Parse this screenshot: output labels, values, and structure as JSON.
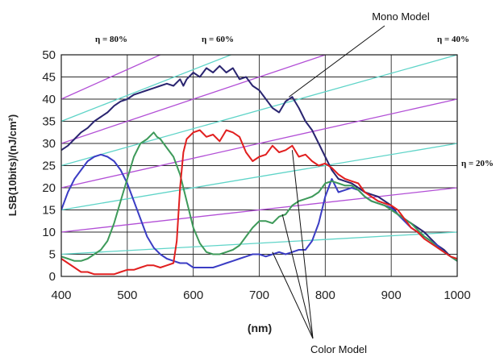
{
  "chart_data": {
    "type": "line",
    "xlabel": "(nm)",
    "ylabel": "LSB(10bits)/(nJ/cm²)",
    "xlim": [
      400,
      1000
    ],
    "ylim": [
      0,
      50
    ],
    "xticks": [
      400,
      500,
      600,
      700,
      800,
      900,
      1000
    ],
    "yticks": [
      0,
      5,
      10,
      15,
      20,
      25,
      30,
      35,
      40,
      45,
      50
    ],
    "grid": true,
    "series": [
      {
        "label": "Mono Model",
        "color": "#2a2570",
        "x": [
          400,
          410,
          420,
          430,
          440,
          450,
          460,
          470,
          480,
          490,
          500,
          510,
          520,
          530,
          540,
          550,
          560,
          570,
          580,
          585,
          590,
          600,
          610,
          620,
          630,
          640,
          650,
          660,
          670,
          680,
          690,
          700,
          710,
          720,
          730,
          740,
          750,
          760,
          770,
          780,
          790,
          800,
          810,
          820,
          830,
          840,
          850,
          860,
          870,
          880,
          890,
          900,
          910,
          920,
          930,
          940,
          950,
          960,
          970,
          980,
          990,
          1000
        ],
        "y": [
          28.5,
          29.5,
          31,
          32.5,
          33.5,
          35,
          36,
          37,
          38.5,
          39.5,
          40,
          41,
          41.5,
          42,
          42.5,
          43,
          43.5,
          43,
          44.5,
          43,
          44.5,
          46,
          45,
          47,
          46,
          47.5,
          46,
          47,
          44.5,
          45,
          43,
          42,
          40,
          38,
          37,
          39.5,
          40.5,
          38,
          35,
          33,
          30,
          27,
          24,
          22,
          21.5,
          21,
          20,
          19,
          18.5,
          18,
          17,
          16,
          14,
          13,
          12,
          11,
          10,
          8.5,
          7,
          6,
          4.5,
          3.5
        ]
      },
      {
        "label": "Color Model (blue)",
        "color": "#3b3dc4",
        "x": [
          400,
          410,
          420,
          430,
          440,
          450,
          460,
          470,
          480,
          490,
          500,
          510,
          520,
          530,
          540,
          550,
          560,
          570,
          580,
          590,
          600,
          610,
          620,
          630,
          640,
          650,
          660,
          670,
          680,
          690,
          700,
          710,
          720,
          730,
          740,
          750,
          760,
          770,
          780,
          790,
          800,
          810,
          820,
          830,
          840,
          850,
          860,
          870,
          880,
          890,
          900,
          910,
          920,
          930,
          940,
          950,
          960,
          970,
          980,
          990,
          1000
        ],
        "y": [
          15,
          19,
          22,
          24,
          26,
          27,
          27.5,
          27,
          26,
          24,
          21,
          17,
          13,
          9,
          6.5,
          5,
          4,
          3.5,
          3,
          3,
          2,
          2,
          2,
          2,
          2.5,
          3,
          3.5,
          4,
          4.5,
          5,
          5,
          4.5,
          5,
          5.5,
          5,
          5.5,
          6,
          6,
          8,
          12,
          18,
          22,
          19,
          19.5,
          20,
          19.5,
          18,
          17,
          16.5,
          16,
          15.5,
          14,
          12.5,
          11,
          10,
          9,
          8,
          7,
          5.5,
          4.5,
          3.5
        ]
      },
      {
        "label": "Color Model (green)",
        "color": "#3e9a5a",
        "x": [
          400,
          410,
          420,
          430,
          440,
          450,
          460,
          470,
          480,
          490,
          500,
          510,
          520,
          530,
          540,
          545,
          550,
          560,
          570,
          580,
          590,
          600,
          610,
          620,
          630,
          640,
          650,
          660,
          670,
          680,
          690,
          700,
          710,
          720,
          730,
          740,
          750,
          760,
          770,
          780,
          790,
          800,
          810,
          820,
          830,
          840,
          850,
          860,
          870,
          880,
          890,
          900,
          910,
          920,
          930,
          940,
          950,
          960,
          970,
          980,
          990,
          1000
        ],
        "y": [
          4.5,
          4,
          3.5,
          3.5,
          4,
          5,
          6,
          8,
          12,
          17,
          22,
          27,
          30,
          31,
          32.5,
          31.5,
          31,
          29,
          27,
          23,
          17,
          11,
          7.5,
          5.5,
          5,
          5,
          5.5,
          6,
          7,
          9,
          11,
          12.5,
          12.5,
          12,
          13.5,
          14,
          16,
          17,
          17.5,
          18,
          19,
          21,
          21.5,
          21,
          20.5,
          20.5,
          19.5,
          18,
          17,
          16.5,
          16,
          15,
          14,
          13,
          12,
          10.5,
          9,
          8,
          6.5,
          5.5,
          4.5,
          3.5
        ]
      },
      {
        "label": "Color Model (red)",
        "color": "#e11f1f",
        "x": [
          400,
          410,
          420,
          430,
          440,
          450,
          460,
          470,
          480,
          490,
          500,
          510,
          520,
          530,
          540,
          550,
          560,
          570,
          575,
          580,
          585,
          590,
          600,
          610,
          620,
          630,
          640,
          650,
          660,
          670,
          680,
          690,
          700,
          710,
          720,
          730,
          740,
          750,
          760,
          770,
          780,
          790,
          800,
          810,
          820,
          830,
          840,
          850,
          860,
          870,
          880,
          890,
          900,
          910,
          920,
          930,
          940,
          950,
          960,
          970,
          980,
          990,
          1000
        ],
        "y": [
          4,
          3,
          2,
          1,
          1,
          0.5,
          0.5,
          0.5,
          0.5,
          1,
          1.5,
          1.5,
          2,
          2.5,
          2.5,
          2,
          2.5,
          3,
          8,
          20,
          28,
          31,
          32.5,
          33,
          31.5,
          32,
          30.5,
          33,
          32.5,
          31.5,
          28,
          26,
          27,
          27.5,
          29.5,
          28,
          28.5,
          29.5,
          27,
          27.5,
          26,
          25,
          25.5,
          24.5,
          23,
          22,
          21.5,
          21,
          19,
          18,
          17,
          16.5,
          16,
          15,
          13,
          11,
          10,
          8.5,
          7.5,
          6.5,
          5.5,
          4.5,
          4
        ]
      }
    ],
    "efficiency_lines": [
      {
        "label": "η = 80%",
        "color": "#b24fd6",
        "x": [
          400,
          1000
        ],
        "y": [
          40,
          80
        ]
      },
      {
        "label": "",
        "color": "#5fd4c8",
        "x": [
          400,
          1000
        ],
        "y": [
          35,
          70
        ]
      },
      {
        "label": "η = 60%",
        "color": "#b24fd6",
        "x": [
          400,
          1000
        ],
        "y": [
          30,
          60
        ]
      },
      {
        "label": "",
        "color": "#5fd4c8",
        "x": [
          400,
          1000
        ],
        "y": [
          25,
          50
        ]
      },
      {
        "label": "η = 40%",
        "color": "#b24fd6",
        "x": [
          400,
          1000
        ],
        "y": [
          20,
          40
        ]
      },
      {
        "label": "",
        "color": "#5fd4c8",
        "x": [
          400,
          1000
        ],
        "y": [
          15,
          30
        ]
      },
      {
        "label": "η = 20%",
        "color": "#b24fd6",
        "x": [
          400,
          1000
        ],
        "y": [
          10,
          20
        ]
      },
      {
        "label": "",
        "color": "#5fd4c8",
        "x": [
          400,
          1000
        ],
        "y": [
          5,
          10
        ]
      }
    ],
    "annotations": [
      {
        "label": "Mono Model",
        "x": 745,
        "y": 40.5
      },
      {
        "label": "Color Model",
        "x": [
          750,
          735,
          720
        ],
        "y": [
          28.5,
          14,
          5.5
        ]
      }
    ]
  }
}
